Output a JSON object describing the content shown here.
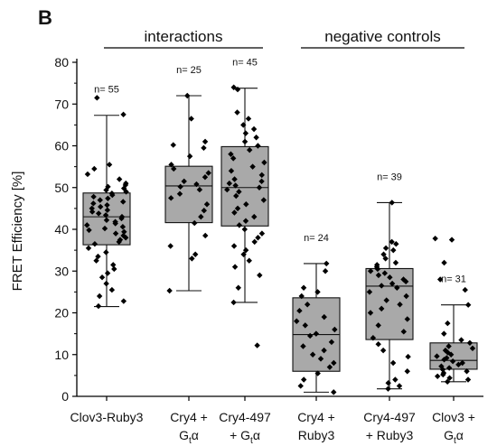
{
  "panel_letter": "B",
  "colors": {
    "box_fill": "#a9a9a9",
    "box_stroke": "#111111",
    "point": "#000000",
    "axis": "#000000"
  },
  "chart_data": {
    "type": "box",
    "ylabel": "FRET Efficiency [%]",
    "ylim": [
      0,
      80
    ],
    "yticks": [
      "0",
      "10",
      "20",
      "30",
      "40",
      "50",
      "60",
      "70",
      "80"
    ],
    "groups": [
      {
        "label": "interactions",
        "categories": [
          0,
          1,
          2
        ]
      },
      {
        "label": "negative controls",
        "categories": [
          3,
          4,
          5
        ]
      }
    ],
    "categories": [
      {
        "line1": "Clov3-Ruby3",
        "line2": "",
        "sub": "",
        "n_label": "n= 55",
        "box": {
          "whisker_low": 21.5,
          "q1": 36.3,
          "median": 43.0,
          "q3": 48.7,
          "whisker_high": 67.3
        },
        "points": [
          71.5,
          67.5,
          55.5,
          54.5,
          53.2,
          52.0,
          51.0,
          50.6,
          50.2,
          49.8,
          49.4,
          49.0,
          48.6,
          48.2,
          47.8,
          47.4,
          47.0,
          46.6,
          46.2,
          45.8,
          45.4,
          45.0,
          44.6,
          44.2,
          43.8,
          43.4,
          43.0,
          42.6,
          42.2,
          41.8,
          41.4,
          41.0,
          40.6,
          40.2,
          39.8,
          39.4,
          39.0,
          38.5,
          38.0,
          37.5,
          37.0,
          36.5,
          35.5,
          34.5,
          33.5,
          32.5,
          31.5,
          30.5,
          29.5,
          28.5,
          27.0,
          25.5,
          24.0,
          22.8,
          21.6
        ]
      },
      {
        "line1": "Cry4 +",
        "line2": "G",
        "sub": "t",
        "after": "α",
        "n_label": "n= 25",
        "box": {
          "whisker_low": 25.3,
          "q1": 41.6,
          "median": 50.4,
          "q3": 55.1,
          "whisker_high": 72.0
        },
        "points": [
          72.0,
          66.5,
          61.0,
          60.2,
          59.5,
          57.5,
          55.5,
          54.5,
          53.5,
          52.5,
          51.5,
          50.8,
          50.2,
          49.5,
          48.5,
          47.5,
          46.0,
          44.5,
          43.0,
          41.5,
          38.5,
          36.0,
          34.0,
          33.0,
          25.3
        ]
      },
      {
        "line1": "Cry4-497",
        "line2": "+ G",
        "sub": "t",
        "after": "α",
        "n_label": "n= 45",
        "box": {
          "whisker_low": 22.5,
          "q1": 40.8,
          "median": 50.0,
          "q3": 59.8,
          "whisker_high": 73.8
        },
        "points": [
          74.0,
          73.5,
          68.0,
          66.5,
          65.0,
          64.0,
          63.0,
          62.0,
          61.0,
          60.0,
          59.0,
          58.0,
          57.0,
          56.0,
          55.0,
          54.0,
          53.0,
          52.0,
          51.5,
          51.0,
          50.5,
          50.0,
          49.5,
          49.0,
          48.0,
          47.0,
          46.0,
          45.0,
          44.0,
          43.0,
          42.0,
          41.0,
          40.0,
          39.0,
          38.0,
          37.0,
          36.0,
          35.0,
          34.0,
          32.5,
          31.0,
          29.0,
          26.0,
          22.5,
          12.2
        ]
      },
      {
        "line1": "Cry4 +",
        "line2": "Ruby3",
        "sub": "",
        "after": "",
        "n_label": "n= 24",
        "box": {
          "whisker_low": 1.0,
          "q1": 6.0,
          "median": 14.8,
          "q3": 23.6,
          "whisker_high": 31.8
        },
        "points": [
          31.8,
          30.0,
          26.0,
          25.0,
          24.0,
          22.0,
          20.5,
          19.0,
          18.0,
          17.0,
          16.0,
          15.0,
          14.5,
          13.0,
          12.0,
          11.0,
          10.0,
          9.0,
          8.0,
          7.0,
          5.5,
          4.0,
          2.5,
          1.0
        ]
      },
      {
        "line1": "Cry4-497",
        "line2": "+ Ruby3",
        "sub": "",
        "after": "",
        "n_label": "n= 39",
        "box": {
          "whisker_low": 1.8,
          "q1": 13.6,
          "median": 26.4,
          "q3": 30.6,
          "whisker_high": 46.4
        },
        "points": [
          46.4,
          37.0,
          36.5,
          35.5,
          35.0,
          34.0,
          33.0,
          32.0,
          31.5,
          31.0,
          30.5,
          30.0,
          29.5,
          29.0,
          28.5,
          28.0,
          27.5,
          27.0,
          26.5,
          26.0,
          25.0,
          24.0,
          23.0,
          22.0,
          21.0,
          20.0,
          18.5,
          17.0,
          15.5,
          14.0,
          12.5,
          11.0,
          9.5,
          8.0,
          6.0,
          4.0,
          3.2,
          2.5,
          1.8
        ]
      },
      {
        "line1": "Clov3 +",
        "line2": "G",
        "sub": "t",
        "after": "α",
        "n_label": "n= 31",
        "box": {
          "whisker_low": 3.5,
          "q1": 6.5,
          "median": 8.6,
          "q3": 12.8,
          "whisker_high": 21.9
        },
        "points": [
          37.8,
          37.5,
          32.0,
          28.0,
          25.5,
          21.9,
          17.5,
          15.0,
          13.5,
          12.8,
          12.0,
          11.5,
          11.0,
          10.5,
          10.0,
          9.6,
          9.2,
          8.8,
          8.4,
          8.0,
          7.6,
          7.2,
          6.8,
          6.4,
          6.0,
          5.6,
          5.2,
          4.8,
          4.4,
          4.0,
          3.5
        ]
      }
    ]
  }
}
